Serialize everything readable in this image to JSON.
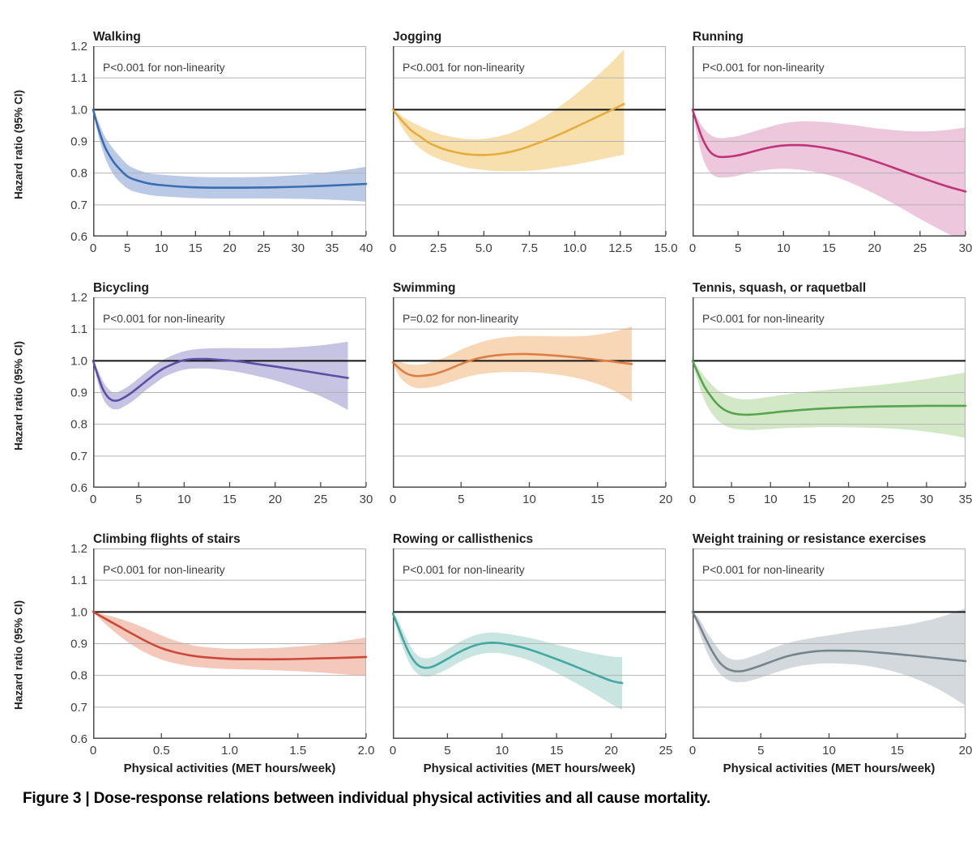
{
  "figure": {
    "ylabel": "Hazard ratio (95% CI)",
    "yticks": [
      "1.2",
      "1.1",
      "1.0",
      "0.9",
      "0.8",
      "0.7",
      "0.6"
    ],
    "xlabel": "Physical activities (MET hours/week)",
    "caption": "Figure 3 | Dose-response relations between individual physical activities and all cause mortality.",
    "colors": {
      "axis": "#4c4c4c",
      "grid": "#b3b3b3",
      "ref_line": "#151515",
      "tick_text": "#3f3f3f",
      "p_text": "#3d3d3d"
    }
  },
  "chart_data": {
    "type": "line",
    "ylim": [
      0.6,
      1.2
    ],
    "ygrid": [
      1.1,
      0.9,
      0.8,
      0.7
    ],
    "ref_line": 1.0,
    "panels": [
      {
        "title": "Walking",
        "p_label": "P<0.001 for non-linearity",
        "line_color": "#3a6eb2",
        "band_color": "#b9c9e6",
        "xmax": 40,
        "xtick_vals": [
          0,
          5,
          10,
          15,
          20,
          25,
          30,
          35,
          40
        ],
        "xtick_labels": [
          "0",
          "5",
          "10",
          "15",
          "20",
          "25",
          "30",
          "35",
          "40"
        ],
        "x": [
          0,
          0.5,
          1,
          1.5,
          2,
          3,
          4,
          5,
          6,
          8,
          10,
          14,
          18,
          22,
          26,
          30,
          34,
          38,
          40
        ],
        "mid": [
          1.0,
          0.96,
          0.925,
          0.895,
          0.87,
          0.835,
          0.81,
          0.79,
          0.78,
          0.768,
          0.762,
          0.756,
          0.754,
          0.754,
          0.755,
          0.757,
          0.76,
          0.764,
          0.766
        ],
        "lo": [
          1.0,
          0.945,
          0.9,
          0.865,
          0.835,
          0.795,
          0.77,
          0.752,
          0.742,
          0.732,
          0.727,
          0.722,
          0.72,
          0.72,
          0.72,
          0.719,
          0.717,
          0.713,
          0.71
        ],
        "hi": [
          1.0,
          0.975,
          0.95,
          0.925,
          0.905,
          0.875,
          0.85,
          0.828,
          0.815,
          0.8,
          0.795,
          0.789,
          0.787,
          0.787,
          0.789,
          0.794,
          0.802,
          0.813,
          0.82
        ]
      },
      {
        "title": "Jogging",
        "p_label": "P<0.001 for non-linearity",
        "line_color": "#e7ac3e",
        "band_color": "#f8dfae",
        "xmax": 15,
        "xtick_vals": [
          0,
          2.5,
          5,
          7.5,
          10,
          12.5,
          15
        ],
        "xtick_labels": [
          "0",
          "2.5",
          "5.0",
          "7.5",
          "10.0",
          "12.5",
          "15.0"
        ],
        "x": [
          0,
          0.5,
          1,
          1.5,
          2,
          2.5,
          3,
          4,
          5,
          6,
          7,
          8,
          9,
          10,
          11,
          12,
          12.7
        ],
        "mid": [
          1.0,
          0.965,
          0.935,
          0.915,
          0.895,
          0.882,
          0.872,
          0.86,
          0.857,
          0.862,
          0.875,
          0.895,
          0.918,
          0.944,
          0.971,
          0.998,
          1.018
        ],
        "lo": [
          1.0,
          0.945,
          0.905,
          0.878,
          0.858,
          0.845,
          0.835,
          0.818,
          0.81,
          0.806,
          0.806,
          0.81,
          0.818,
          0.827,
          0.838,
          0.85,
          0.858
        ],
        "hi": [
          1.0,
          0.98,
          0.962,
          0.948,
          0.935,
          0.925,
          0.917,
          0.908,
          0.908,
          0.918,
          0.938,
          0.967,
          1.003,
          1.046,
          1.095,
          1.148,
          1.19
        ]
      },
      {
        "title": "Running",
        "p_label": "P<0.001 for non-linearity",
        "line_color": "#c03579",
        "band_color": "#edc7dc",
        "xmax": 30,
        "xtick_vals": [
          0,
          5,
          10,
          15,
          20,
          25,
          30
        ],
        "xtick_labels": [
          "0",
          "5",
          "10",
          "15",
          "20",
          "25",
          "30"
        ],
        "x": [
          0,
          0.5,
          1,
          1.5,
          2,
          2.5,
          3,
          4,
          5,
          6,
          8,
          10,
          12,
          14,
          16,
          18,
          20,
          22,
          24,
          26,
          28,
          30
        ],
        "mid": [
          1.0,
          0.955,
          0.915,
          0.885,
          0.865,
          0.855,
          0.851,
          0.852,
          0.856,
          0.863,
          0.878,
          0.887,
          0.888,
          0.882,
          0.871,
          0.856,
          0.838,
          0.818,
          0.797,
          0.777,
          0.758,
          0.742
        ],
        "lo": [
          1.0,
          0.92,
          0.86,
          0.822,
          0.8,
          0.79,
          0.786,
          0.787,
          0.792,
          0.8,
          0.81,
          0.814,
          0.81,
          0.8,
          0.785,
          0.762,
          0.735,
          0.705,
          0.672,
          0.64,
          0.61,
          0.582
        ],
        "hi": [
          1.0,
          0.975,
          0.95,
          0.932,
          0.92,
          0.913,
          0.91,
          0.912,
          0.917,
          0.925,
          0.942,
          0.957,
          0.963,
          0.962,
          0.957,
          0.95,
          0.942,
          0.936,
          0.932,
          0.932,
          0.936,
          0.944
        ]
      },
      {
        "title": "Bicycling",
        "p_label": "P<0.001 for non-linearity",
        "line_color": "#5b50a5",
        "band_color": "#c6c3e3",
        "xmax": 30,
        "xtick_vals": [
          0,
          5,
          10,
          15,
          20,
          25,
          30
        ],
        "xtick_labels": [
          "0",
          "5",
          "10",
          "15",
          "20",
          "25",
          "30"
        ],
        "x": [
          0,
          0.5,
          1,
          1.5,
          2,
          2.5,
          3,
          4,
          5,
          6,
          7,
          8,
          10,
          12,
          14,
          16,
          18,
          20,
          22,
          24,
          26,
          28
        ],
        "mid": [
          1.0,
          0.955,
          0.915,
          0.89,
          0.877,
          0.874,
          0.878,
          0.895,
          0.917,
          0.94,
          0.962,
          0.98,
          1.002,
          1.006,
          1.003,
          0.998,
          0.99,
          0.982,
          0.973,
          0.964,
          0.955,
          0.946
        ],
        "lo": [
          1.0,
          0.935,
          0.888,
          0.862,
          0.85,
          0.847,
          0.85,
          0.866,
          0.888,
          0.912,
          0.933,
          0.952,
          0.972,
          0.976,
          0.972,
          0.964,
          0.952,
          0.938,
          0.92,
          0.9,
          0.875,
          0.845
        ],
        "hi": [
          1.0,
          0.972,
          0.94,
          0.917,
          0.903,
          0.9,
          0.905,
          0.922,
          0.945,
          0.968,
          0.99,
          1.008,
          1.03,
          1.038,
          1.04,
          1.04,
          1.04,
          1.04,
          1.042,
          1.046,
          1.052,
          1.06
        ]
      },
      {
        "title": "Swimming",
        "p_label": "P=0.02 for non-linearity",
        "line_color": "#dd7e44",
        "band_color": "#f8d7b6",
        "xmax": 20,
        "xtick_vals": [
          0,
          5,
          10,
          15,
          20
        ],
        "xtick_labels": [
          "0",
          "5",
          "10",
          "15",
          "20"
        ],
        "x": [
          0,
          0.5,
          1,
          1.5,
          2,
          3,
          4,
          5,
          6,
          7,
          8,
          9,
          10,
          12,
          14,
          16,
          17.5
        ],
        "mid": [
          0.995,
          0.975,
          0.96,
          0.953,
          0.952,
          0.958,
          0.972,
          0.99,
          1.005,
          1.014,
          1.019,
          1.021,
          1.021,
          1.016,
          1.008,
          0.998,
          0.99
        ],
        "lo": [
          0.99,
          0.95,
          0.928,
          0.917,
          0.913,
          0.918,
          0.93,
          0.944,
          0.955,
          0.961,
          0.964,
          0.965,
          0.964,
          0.957,
          0.94,
          0.91,
          0.872
        ],
        "hi": [
          1.0,
          0.998,
          0.99,
          0.988,
          0.988,
          0.998,
          1.014,
          1.035,
          1.052,
          1.065,
          1.073,
          1.077,
          1.078,
          1.077,
          1.078,
          1.09,
          1.108
        ]
      },
      {
        "title": "Tennis, squash, or raquetball",
        "p_label": "P<0.001 for non-linearity",
        "line_color": "#55a44e",
        "band_color": "#d2e8c6",
        "xmax": 35,
        "xtick_vals": [
          0,
          5,
          10,
          15,
          20,
          25,
          30,
          35
        ],
        "xtick_labels": [
          "0",
          "5",
          "10",
          "15",
          "20",
          "25",
          "30",
          "35"
        ],
        "x": [
          0,
          0.5,
          1,
          1.5,
          2,
          3,
          4,
          5,
          6,
          7,
          8,
          10,
          12,
          15,
          18,
          21,
          24,
          27,
          30,
          33,
          35
        ],
        "mid": [
          1.0,
          0.972,
          0.945,
          0.92,
          0.9,
          0.868,
          0.847,
          0.836,
          0.831,
          0.83,
          0.831,
          0.836,
          0.841,
          0.847,
          0.851,
          0.854,
          0.856,
          0.857,
          0.858,
          0.858,
          0.858
        ],
        "lo": [
          1.0,
          0.95,
          0.91,
          0.878,
          0.852,
          0.818,
          0.798,
          0.788,
          0.784,
          0.782,
          0.782,
          0.785,
          0.788,
          0.79,
          0.791,
          0.79,
          0.788,
          0.784,
          0.777,
          0.766,
          0.757
        ],
        "hi": [
          1.0,
          0.985,
          0.968,
          0.952,
          0.937,
          0.912,
          0.896,
          0.886,
          0.88,
          0.878,
          0.88,
          0.887,
          0.894,
          0.903,
          0.91,
          0.917,
          0.924,
          0.933,
          0.943,
          0.955,
          0.963
        ]
      },
      {
        "title": "Climbing flights of stairs",
        "p_label": "P<0.001 for non-linearity",
        "line_color": "#cc4939",
        "band_color": "#f4c8ba",
        "xmax": 2,
        "xtick_vals": [
          0,
          0.5,
          1,
          1.5,
          2
        ],
        "xtick_labels": [
          "0",
          "0.5",
          "1.0",
          "1.5",
          "2.0"
        ],
        "x": [
          0,
          0.1,
          0.2,
          0.3,
          0.4,
          0.5,
          0.6,
          0.7,
          0.8,
          1.0,
          1.2,
          1.4,
          1.6,
          1.8,
          2.0
        ],
        "mid": [
          1.0,
          0.976,
          0.952,
          0.928,
          0.905,
          0.886,
          0.873,
          0.864,
          0.858,
          0.852,
          0.851,
          0.851,
          0.853,
          0.855,
          0.858
        ],
        "lo": [
          1.0,
          0.958,
          0.922,
          0.892,
          0.868,
          0.85,
          0.838,
          0.83,
          0.825,
          0.82,
          0.818,
          0.815,
          0.811,
          0.805,
          0.798
        ],
        "hi": [
          1.0,
          0.99,
          0.978,
          0.963,
          0.945,
          0.926,
          0.91,
          0.898,
          0.89,
          0.884,
          0.885,
          0.888,
          0.895,
          0.906,
          0.92
        ]
      },
      {
        "title": "Rowing or callisthenics",
        "p_label": "P<0.001 for non-linearity",
        "line_color": "#42a8a1",
        "band_color": "#c9e5e2",
        "xmax": 25,
        "xtick_vals": [
          0,
          5,
          10,
          15,
          20,
          25
        ],
        "xtick_labels": [
          "0",
          "5",
          "10",
          "15",
          "20",
          "25"
        ],
        "x": [
          0,
          0.5,
          1,
          1.5,
          2,
          2.5,
          3,
          3.5,
          4,
          5,
          6,
          7,
          8,
          9,
          10,
          12,
          14,
          16,
          18,
          20,
          21
        ],
        "mid": [
          0.995,
          0.952,
          0.908,
          0.87,
          0.843,
          0.828,
          0.824,
          0.826,
          0.833,
          0.852,
          0.872,
          0.888,
          0.899,
          0.903,
          0.901,
          0.887,
          0.864,
          0.838,
          0.81,
          0.783,
          0.776
        ],
        "lo": [
          0.99,
          0.93,
          0.88,
          0.84,
          0.814,
          0.8,
          0.796,
          0.798,
          0.804,
          0.82,
          0.84,
          0.856,
          0.867,
          0.871,
          0.869,
          0.853,
          0.825,
          0.79,
          0.752,
          0.71,
          0.692
        ],
        "hi": [
          1.0,
          0.972,
          0.935,
          0.9,
          0.872,
          0.858,
          0.854,
          0.856,
          0.862,
          0.882,
          0.903,
          0.92,
          0.931,
          0.935,
          0.933,
          0.922,
          0.906,
          0.888,
          0.872,
          0.86,
          0.858
        ]
      },
      {
        "title": "Weight training or resistance exercises",
        "p_label": "P<0.001 for non-linearity",
        "line_color": "#76848e",
        "band_color": "#d4d9dd",
        "xmax": 20,
        "xtick_vals": [
          0,
          5,
          10,
          15,
          20
        ],
        "xtick_labels": [
          "0",
          "5",
          "10",
          "15",
          "20"
        ],
        "x": [
          0,
          0.5,
          1,
          1.5,
          2,
          2.5,
          3,
          3.5,
          4,
          5,
          6,
          7,
          8,
          9,
          10,
          12,
          14,
          16,
          18,
          20
        ],
        "mid": [
          1.0,
          0.958,
          0.912,
          0.872,
          0.84,
          0.822,
          0.814,
          0.813,
          0.817,
          0.831,
          0.847,
          0.861,
          0.87,
          0.876,
          0.878,
          0.877,
          0.871,
          0.863,
          0.854,
          0.845
        ],
        "lo": [
          1.0,
          0.935,
          0.878,
          0.836,
          0.806,
          0.788,
          0.78,
          0.779,
          0.781,
          0.793,
          0.808,
          0.821,
          0.831,
          0.836,
          0.838,
          0.834,
          0.82,
          0.795,
          0.757,
          0.705
        ],
        "hi": [
          1.0,
          0.978,
          0.94,
          0.908,
          0.878,
          0.858,
          0.85,
          0.85,
          0.855,
          0.87,
          0.888,
          0.902,
          0.912,
          0.92,
          0.926,
          0.94,
          0.95,
          0.962,
          0.982,
          1.012
        ]
      }
    ]
  }
}
